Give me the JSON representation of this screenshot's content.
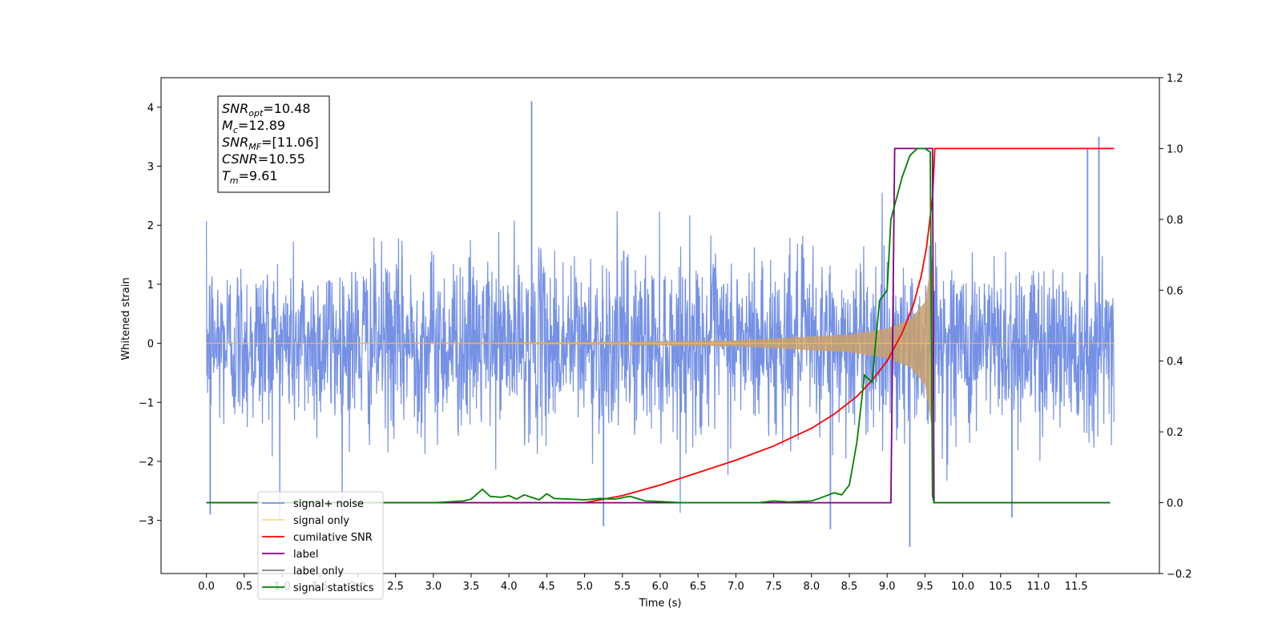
{
  "chart_data": {
    "type": "line",
    "title": "",
    "xlabel": "Time (s)",
    "ylabel": "Whitened strain",
    "y2label": "",
    "xlim": [
      -0.6,
      12.6
    ],
    "ylim": [
      -3.9,
      4.5
    ],
    "y2lim": [
      -0.2,
      1.2
    ],
    "grid": false,
    "legend_position": "lower-left",
    "x_ticks": [
      "0.0",
      "0.5",
      "1.0",
      "1.5",
      "2.0",
      "2.5",
      "3.0",
      "3.5",
      "4.0",
      "4.5",
      "5.0",
      "5.5",
      "6.0",
      "6.5",
      "7.0",
      "7.5",
      "8.0",
      "8.5",
      "9.0",
      "9.5",
      "10.0",
      "10.5",
      "11.0",
      "11.5"
    ],
    "y_ticks": [
      "−3",
      "−2",
      "−1",
      "0",
      "1",
      "2",
      "3",
      "4"
    ],
    "y2_ticks": [
      "−0.2",
      "0.0",
      "0.2",
      "0.4",
      "0.6",
      "0.8",
      "1.0",
      "1.2"
    ],
    "annotations": [
      {
        "main": "SNR",
        "sub": "opt",
        "value": "=10.48"
      },
      {
        "main": "M",
        "sub": "c",
        "value": "=12.89"
      },
      {
        "main": "SNR",
        "sub": "MF",
        "value": "=[11.06]"
      },
      {
        "main": "CSNR",
        "sub": "",
        "value": "=10.55"
      },
      {
        "main": "T",
        "sub": "m",
        "value": "=9.61"
      }
    ],
    "series": [
      {
        "name": "signal+ noise",
        "axis": "left",
        "color": "#7591e6",
        "kind": "noise",
        "x_range": [
          0.0,
          12.0
        ],
        "typical_band": [
          -1.6,
          1.6
        ],
        "extremes": [
          {
            "x": 4.3,
            "y": 4.1
          },
          {
            "x": 11.8,
            "y": 3.5
          },
          {
            "x": 11.65,
            "y": 3.3
          },
          {
            "x": 9.3,
            "y": -3.45
          },
          {
            "x": 8.25,
            "y": -3.15
          },
          {
            "x": 5.25,
            "y": -3.1
          },
          {
            "x": 0.05,
            "y": -2.9
          },
          {
            "x": 10.65,
            "y": -2.95
          }
        ]
      },
      {
        "name": "signal only",
        "axis": "left",
        "color": "#ffbf40",
        "kind": "chirp",
        "x_range": [
          0.0,
          12.0
        ],
        "merger_time": 9.61,
        "envelope": [
          [
            0.0,
            0.0
          ],
          [
            5.0,
            0.02
          ],
          [
            7.0,
            0.05
          ],
          [
            8.5,
            0.15
          ],
          [
            9.0,
            0.25
          ],
          [
            9.3,
            0.4
          ],
          [
            9.5,
            0.7
          ],
          [
            9.6,
            1.5
          ],
          [
            9.62,
            0.0
          ],
          [
            12.0,
            0.0
          ]
        ]
      },
      {
        "name": "cumilative SNR",
        "axis": "right",
        "color": "#ff0000",
        "x": [
          0.0,
          5.0,
          5.5,
          6.0,
          6.5,
          7.0,
          7.5,
          8.0,
          8.3,
          8.6,
          8.8,
          9.0,
          9.2,
          9.35,
          9.45,
          9.52,
          9.56,
          9.6,
          9.62,
          9.63,
          12.0
        ],
        "values": [
          0.0,
          0.0,
          0.02,
          0.05,
          0.085,
          0.12,
          0.16,
          0.21,
          0.25,
          0.3,
          0.345,
          0.4,
          0.48,
          0.56,
          0.64,
          0.72,
          0.79,
          0.86,
          0.95,
          1.0,
          1.0
        ]
      },
      {
        "name": "label",
        "axis": "right",
        "color": "#800080",
        "x": [
          0.0,
          9.05,
          9.1,
          9.6,
          9.62,
          11.95
        ],
        "values": [
          0.0,
          0.0,
          1.0,
          1.0,
          0.0,
          0.0
        ]
      },
      {
        "name": "label only",
        "axis": "right",
        "color": "#808080",
        "x": [],
        "values": []
      },
      {
        "name": "signal statistics",
        "axis": "right",
        "color": "#008000",
        "x": [
          0.0,
          3.0,
          3.4,
          3.5,
          3.65,
          3.75,
          3.9,
          4.0,
          4.1,
          4.2,
          4.3,
          4.4,
          4.5,
          4.6,
          4.8,
          5.0,
          5.2,
          5.4,
          5.6,
          5.8,
          6.0,
          6.3,
          7.3,
          7.5,
          7.7,
          8.0,
          8.1,
          8.3,
          8.4,
          8.5,
          8.6,
          8.7,
          8.8,
          8.9,
          9.0,
          9.05,
          9.1,
          9.2,
          9.3,
          9.4,
          9.5,
          9.57,
          9.6,
          9.62,
          11.95
        ],
        "values": [
          0.0,
          0.0,
          0.005,
          0.01,
          0.038,
          0.018,
          0.015,
          0.02,
          0.01,
          0.022,
          0.015,
          0.008,
          0.025,
          0.012,
          0.01,
          0.008,
          0.012,
          0.01,
          0.018,
          0.005,
          0.003,
          0.0,
          0.0,
          0.005,
          0.002,
          0.005,
          0.012,
          0.028,
          0.022,
          0.05,
          0.17,
          0.36,
          0.34,
          0.57,
          0.6,
          0.8,
          0.84,
          0.92,
          0.98,
          1.0,
          1.0,
          0.99,
          0.02,
          0.0,
          0.0
        ]
      }
    ]
  }
}
